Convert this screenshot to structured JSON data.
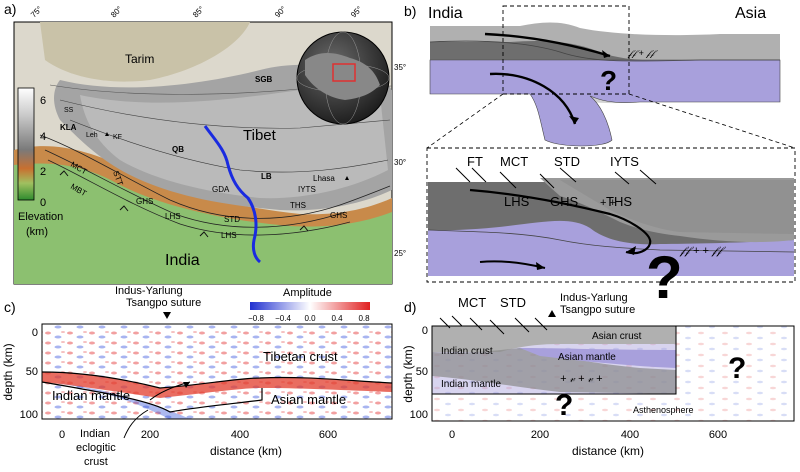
{
  "panels": {
    "a": {
      "label": "a)",
      "lon_ticks": [
        "75°",
        "80°",
        "85°",
        "90°",
        "95°"
      ],
      "lat_ticks": [
        "35°",
        "30°",
        "25°"
      ],
      "regions": [
        "Tarim",
        "Tibet",
        "India",
        "SGB",
        "QB",
        "LB",
        "GDA",
        "IYTS",
        "THS",
        "STD",
        "GHS",
        "LHS",
        "MCT",
        "MBT",
        "STT",
        "KLA",
        "SS",
        "KF",
        "Leh",
        "Lhasa",
        "GHS"
      ],
      "colorbar": {
        "ticks": [
          "6",
          "4",
          "2",
          "0"
        ],
        "title_line1": "Elevation",
        "title_line2": "(km)"
      }
    },
    "b": {
      "label": "b)",
      "left_title": "India",
      "right_title": "Asia",
      "zoom_labels": [
        "FT",
        "MCT",
        "STD",
        "IYTS",
        "LHS",
        "GHS",
        "THS"
      ],
      "question": "?"
    },
    "c": {
      "label": "c)",
      "suture_line1": "Indus-Yarlung",
      "suture_line2": "Tsangpo suture",
      "amplitude_title": "Amplitude",
      "amplitude_ticks": [
        "−0.8",
        "−0.4",
        "0.0",
        "0.4",
        "0.8"
      ],
      "ylabel": "depth (km)",
      "xlabel": "distance (km)",
      "yticks": [
        "0",
        "50",
        "100"
      ],
      "xticks": [
        "0",
        "200",
        "400",
        "600"
      ],
      "annotations": {
        "tibetan_crust": "Tibetan crust",
        "indian_mantle": "Indian mantle",
        "asian_mantle": "Asian mantle",
        "eclogitic_1": "Indian",
        "eclogitic_2": "eclogitic",
        "eclogitic_3": "crust"
      }
    },
    "d": {
      "label": "d)",
      "top_labels": [
        "MCT",
        "STD"
      ],
      "suture_line1": "Indus-Yarlung",
      "suture_line2": "Tsangpo suture",
      "ylabel": "depth (km)",
      "xlabel": "distance (km)",
      "yticks": [
        "0",
        "50",
        "100"
      ],
      "xticks": [
        "0",
        "200",
        "400",
        "600"
      ],
      "annotations": {
        "asian_crust": "Asian crust",
        "indian_crust": "Indian crust",
        "asian_mantle": "Asian mantle",
        "indian_mantle": "Indian mantle",
        "asthenosphere": "Asthenosphere"
      },
      "question": "?"
    }
  },
  "colors": {
    "indian_mantle": "#a8a0dc",
    "crust_dark": "#6e6e6e",
    "crust_light": "#b4b4b4",
    "positive": "#e23c2c",
    "negative": "#3050d8",
    "suture_line": "#1a2be0"
  }
}
